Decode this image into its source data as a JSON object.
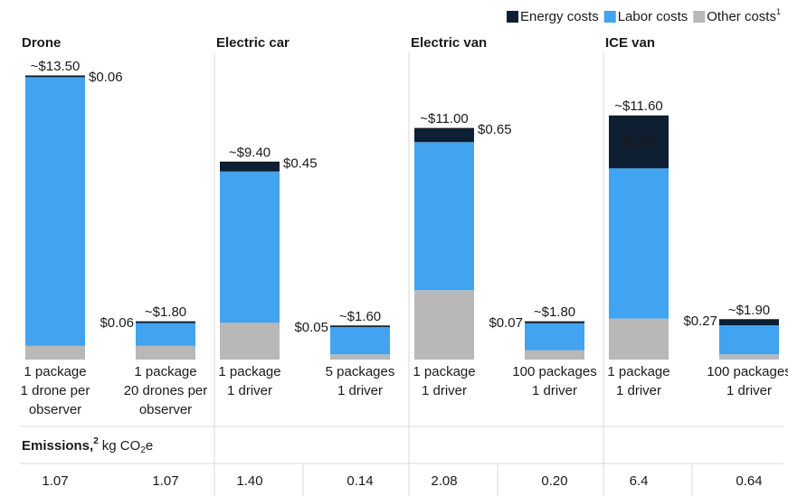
{
  "chart_data": {
    "type": "stacked-bar",
    "groups": [
      "Drone",
      "Electric car",
      "Electric van",
      "ICE van"
    ],
    "categories": [
      [
        "1 package",
        "1 drone per",
        "observer"
      ],
      [
        "1 package",
        "20 drones per",
        "observer"
      ],
      [
        "1 package",
        "1 driver"
      ],
      [
        "5 packages",
        "1 driver"
      ],
      [
        "1 package",
        "1 driver"
      ],
      [
        "100 packages",
        "1 driver"
      ],
      [
        "1 package",
        "1 driver"
      ],
      [
        "100 packages",
        "1 driver"
      ]
    ],
    "series": [
      {
        "name": "Other costs",
        "legend_note": "1",
        "color": "#b8b8b8",
        "values": [
          0.65,
          0.65,
          1.75,
          0.25,
          3.3,
          0.45,
          1.95,
          0.25
        ]
      },
      {
        "name": "Labor costs",
        "color": "#42a3f1",
        "values": [
          12.79,
          1.09,
          7.2,
          1.3,
          7.05,
          1.28,
          7.15,
          1.38
        ]
      },
      {
        "name": "Energy costs",
        "color": "#0e1f33",
        "values": [
          0.06,
          0.06,
          0.45,
          0.05,
          0.65,
          0.07,
          2.5,
          0.27
        ],
        "value_labels": [
          "$0.06",
          "$0.06",
          "$0.45",
          "$0.05",
          "$0.65",
          "$0.07",
          "$2.50",
          "$0.27"
        ]
      }
    ],
    "totals": [
      13.5,
      1.8,
      9.4,
      1.6,
      11.0,
      1.8,
      11.6,
      1.9
    ],
    "total_labels": [
      "~$13.50",
      "~$1.80",
      "~$9.40",
      "~$1.60",
      "~$11.00",
      "~$1.80",
      "~$11.60",
      "~$1.90"
    ]
  },
  "emissions": {
    "label": "Emissions,",
    "label_note": "2",
    "unit": "kg CO",
    "unit_sub": "2",
    "unit_end": "e",
    "values": [
      1.07,
      1.07,
      1.4,
      0.14,
      2.08,
      0.2,
      6.4,
      0.64
    ],
    "value_labels": [
      "1.07",
      "1.07",
      "1.40",
      "0.14",
      "2.08",
      "0.20",
      "6.4",
      "0.64"
    ]
  }
}
